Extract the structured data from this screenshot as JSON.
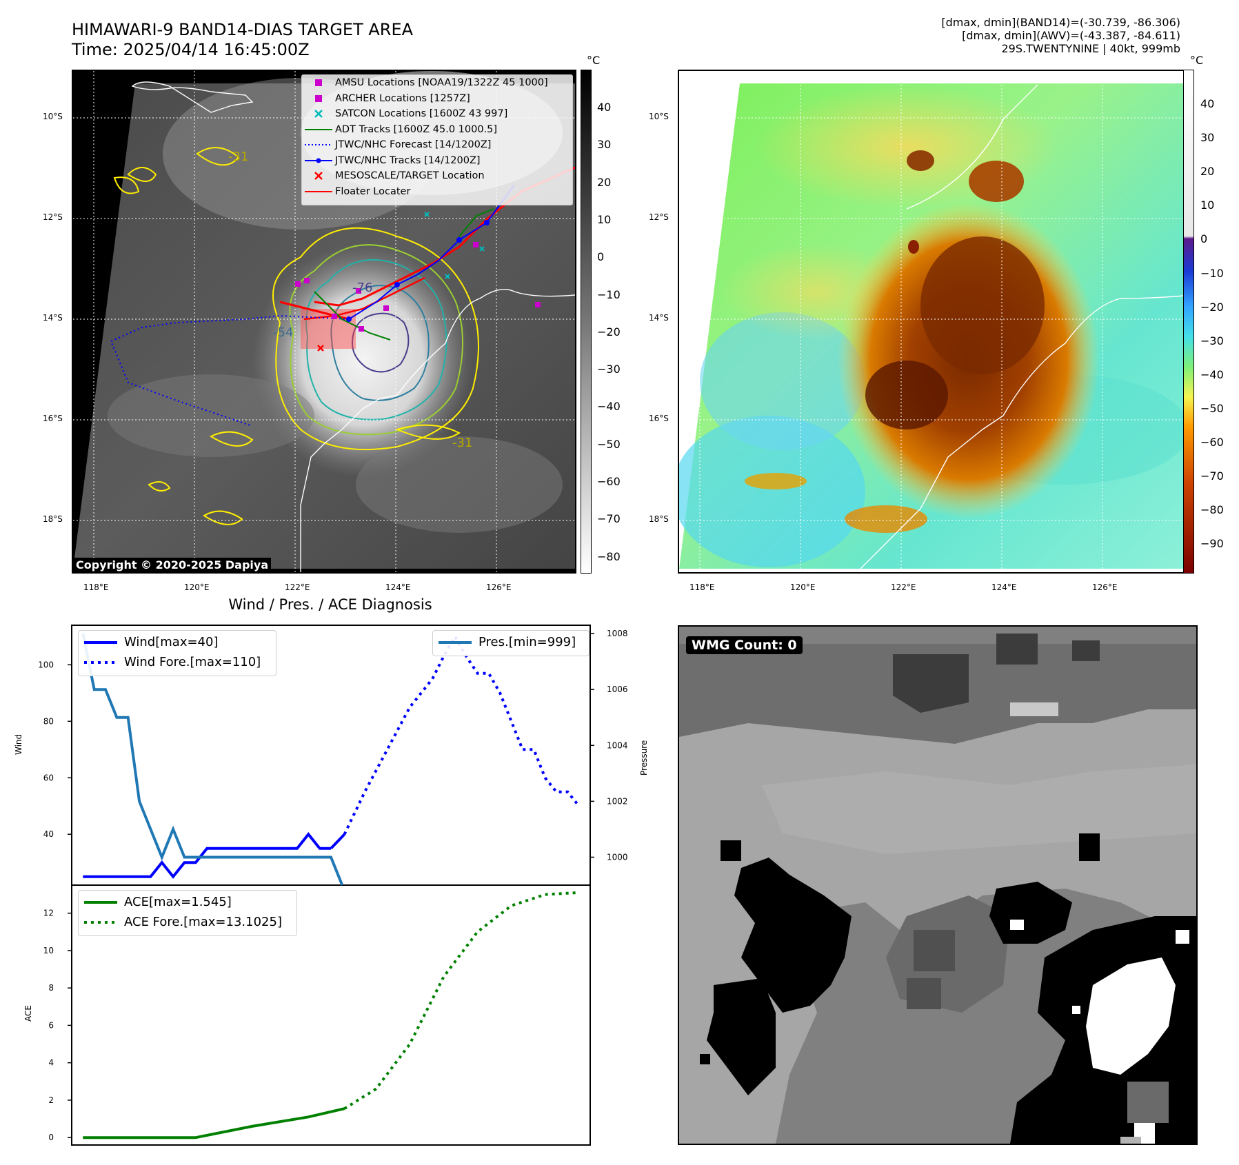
{
  "header": {
    "title_line1": "HIMAWARI-9 BAND14-DIAS TARGET AREA",
    "title_line2": "Time: 2025/04/14 16:45:00Z",
    "info_line1": "[dmax, dmin](BAND14)=(-30.739, -86.306)",
    "info_line2": "[dmax, dmin](AWV)=(-43.387, -84.611)",
    "info_line3": "29S.TWENTYNINE | 40kt, 999mb"
  },
  "map_axes": {
    "lon_labels": [
      "118°E",
      "120°E",
      "122°E",
      "124°E",
      "126°E"
    ],
    "lat_labels": [
      "10°S",
      "12°S",
      "14°S",
      "16°S",
      "18°S"
    ]
  },
  "ir_panel": {
    "copyright": "Copyright © 2020-2025 Dapiya",
    "colorbar_unit": "°C",
    "colorbar_ticks": [
      "40",
      "30",
      "20",
      "10",
      "0",
      "−10",
      "−20",
      "−30",
      "−40",
      "−50",
      "−60",
      "−70",
      "−80"
    ],
    "contour_labels": [
      "-54",
      "-76",
      "-31",
      "-31"
    ],
    "legend": [
      {
        "label": "AMSU Locations [NOAA19/1322Z 45 1000]",
        "color": "#cc00cc",
        "marker": "square"
      },
      {
        "label": "ARCHER Locations [1257Z]",
        "color": "#cc00cc",
        "marker": "square"
      },
      {
        "label": "SATCON Locations [1600Z 43 997]",
        "color": "#00bbbb",
        "marker": "x"
      },
      {
        "label": "ADT Tracks [1600Z 45.0 1000.5]",
        "color": "#008000",
        "marker": "line"
      },
      {
        "label": "JTWC/NHC Forecast [14/1200Z]",
        "color": "#0000ff",
        "marker": "dotted"
      },
      {
        "label": "JTWC/NHC Tracks [14/1200Z]",
        "color": "#0000ff",
        "marker": "line-dot"
      },
      {
        "label": "MESOSCALE/TARGET Location",
        "color": "#ff0000",
        "marker": "x"
      },
      {
        "label": "Floater Locater",
        "color": "#ff0000",
        "marker": "line"
      }
    ]
  },
  "awv_panel": {
    "colorbar_unit": "°C",
    "colorbar_ticks": [
      "40",
      "30",
      "20",
      "10",
      "0",
      "−10",
      "−20",
      "−30",
      "−40",
      "−50",
      "−60",
      "−70",
      "−80",
      "−90"
    ]
  },
  "wmg_panel": {
    "label": "WMG Count: 0"
  },
  "chart_data": [
    {
      "type": "line",
      "title": "Wind / Pres. / ACE Diagnosis",
      "ylabel": "Wind",
      "y2label": "Pressure",
      "ylim": [
        22,
        114
      ],
      "y2lim": [
        999.0,
        1008.3
      ],
      "yticks": [
        "40",
        "60",
        "80",
        "100"
      ],
      "y2ticks": [
        "1000",
        "1002",
        "1004",
        "1006",
        "1008"
      ],
      "series": [
        {
          "name": "Wind[max=40]",
          "color": "#0000ff",
          "style": "solid",
          "axis": "left",
          "x": [
            0,
            1,
            2,
            3,
            4,
            5,
            6,
            7,
            8,
            9,
            10,
            11,
            12,
            13,
            14,
            15,
            16,
            17,
            18
          ],
          "values": [
            25,
            25,
            25,
            25,
            25,
            25,
            25,
            30,
            25,
            30,
            30,
            35,
            35,
            35,
            35,
            35,
            35,
            35,
            35
          ]
        },
        {
          "name": "",
          "color": "#0000ff",
          "style": "solid",
          "axis": "left",
          "x": [
            18,
            19,
            20,
            21,
            22
          ],
          "values": [
            35,
            35,
            40,
            35,
            35
          ]
        },
        {
          "name": "",
          "color": "#0000ff",
          "style": "solid",
          "axis": "left",
          "x": [
            22,
            23.2
          ],
          "values": [
            35,
            40
          ]
        },
        {
          "name": "Wind Fore.[max=110]",
          "color": "#0000ff",
          "style": "dotted",
          "axis": "left",
          "x": [
            23.2,
            25,
            27,
            29,
            31,
            32,
            33,
            34,
            35,
            36,
            37,
            38,
            39,
            40,
            41,
            42,
            43,
            44
          ],
          "values": [
            40,
            55,
            70,
            85,
            95,
            103,
            110,
            103,
            97,
            97,
            90,
            80,
            70,
            70,
            60,
            55,
            55,
            50
          ]
        },
        {
          "name": "Pres.[min=999]",
          "color": "#1f77b4",
          "style": "solid",
          "axis": "right",
          "x": [
            0,
            1,
            2,
            3,
            4,
            5,
            6,
            7,
            8,
            9,
            10,
            11,
            12,
            13,
            14,
            15,
            16,
            17,
            18,
            19,
            20,
            21,
            22,
            23
          ],
          "values": [
            1008,
            1006,
            1006,
            1005,
            1005,
            1002,
            1001,
            1000,
            1001,
            1000,
            1000,
            1000,
            1000,
            1000,
            1000,
            1000,
            1000,
            1000,
            1000,
            1000,
            1000,
            1000,
            1000,
            999
          ]
        }
      ]
    },
    {
      "type": "line",
      "ylabel": "ACE",
      "ylim": [
        -0.4,
        13.5
      ],
      "yticks": [
        "0",
        "2",
        "4",
        "6",
        "8",
        "10",
        "12"
      ],
      "series": [
        {
          "name": "ACE[max=1.545]",
          "color": "#008000",
          "style": "solid",
          "x": [
            0,
            5,
            10,
            15,
            20,
            23.2
          ],
          "values": [
            0,
            0,
            0,
            0.6,
            1.1,
            1.545
          ]
        },
        {
          "name": "ACE Fore.[max=13.1025]",
          "color": "#008000",
          "style": "dotted",
          "x": [
            23.2,
            26,
            29,
            32,
            35,
            38,
            41,
            44
          ],
          "values": [
            1.545,
            2.6,
            5.0,
            8.6,
            11.0,
            12.4,
            13.0,
            13.1025
          ]
        }
      ]
    }
  ]
}
